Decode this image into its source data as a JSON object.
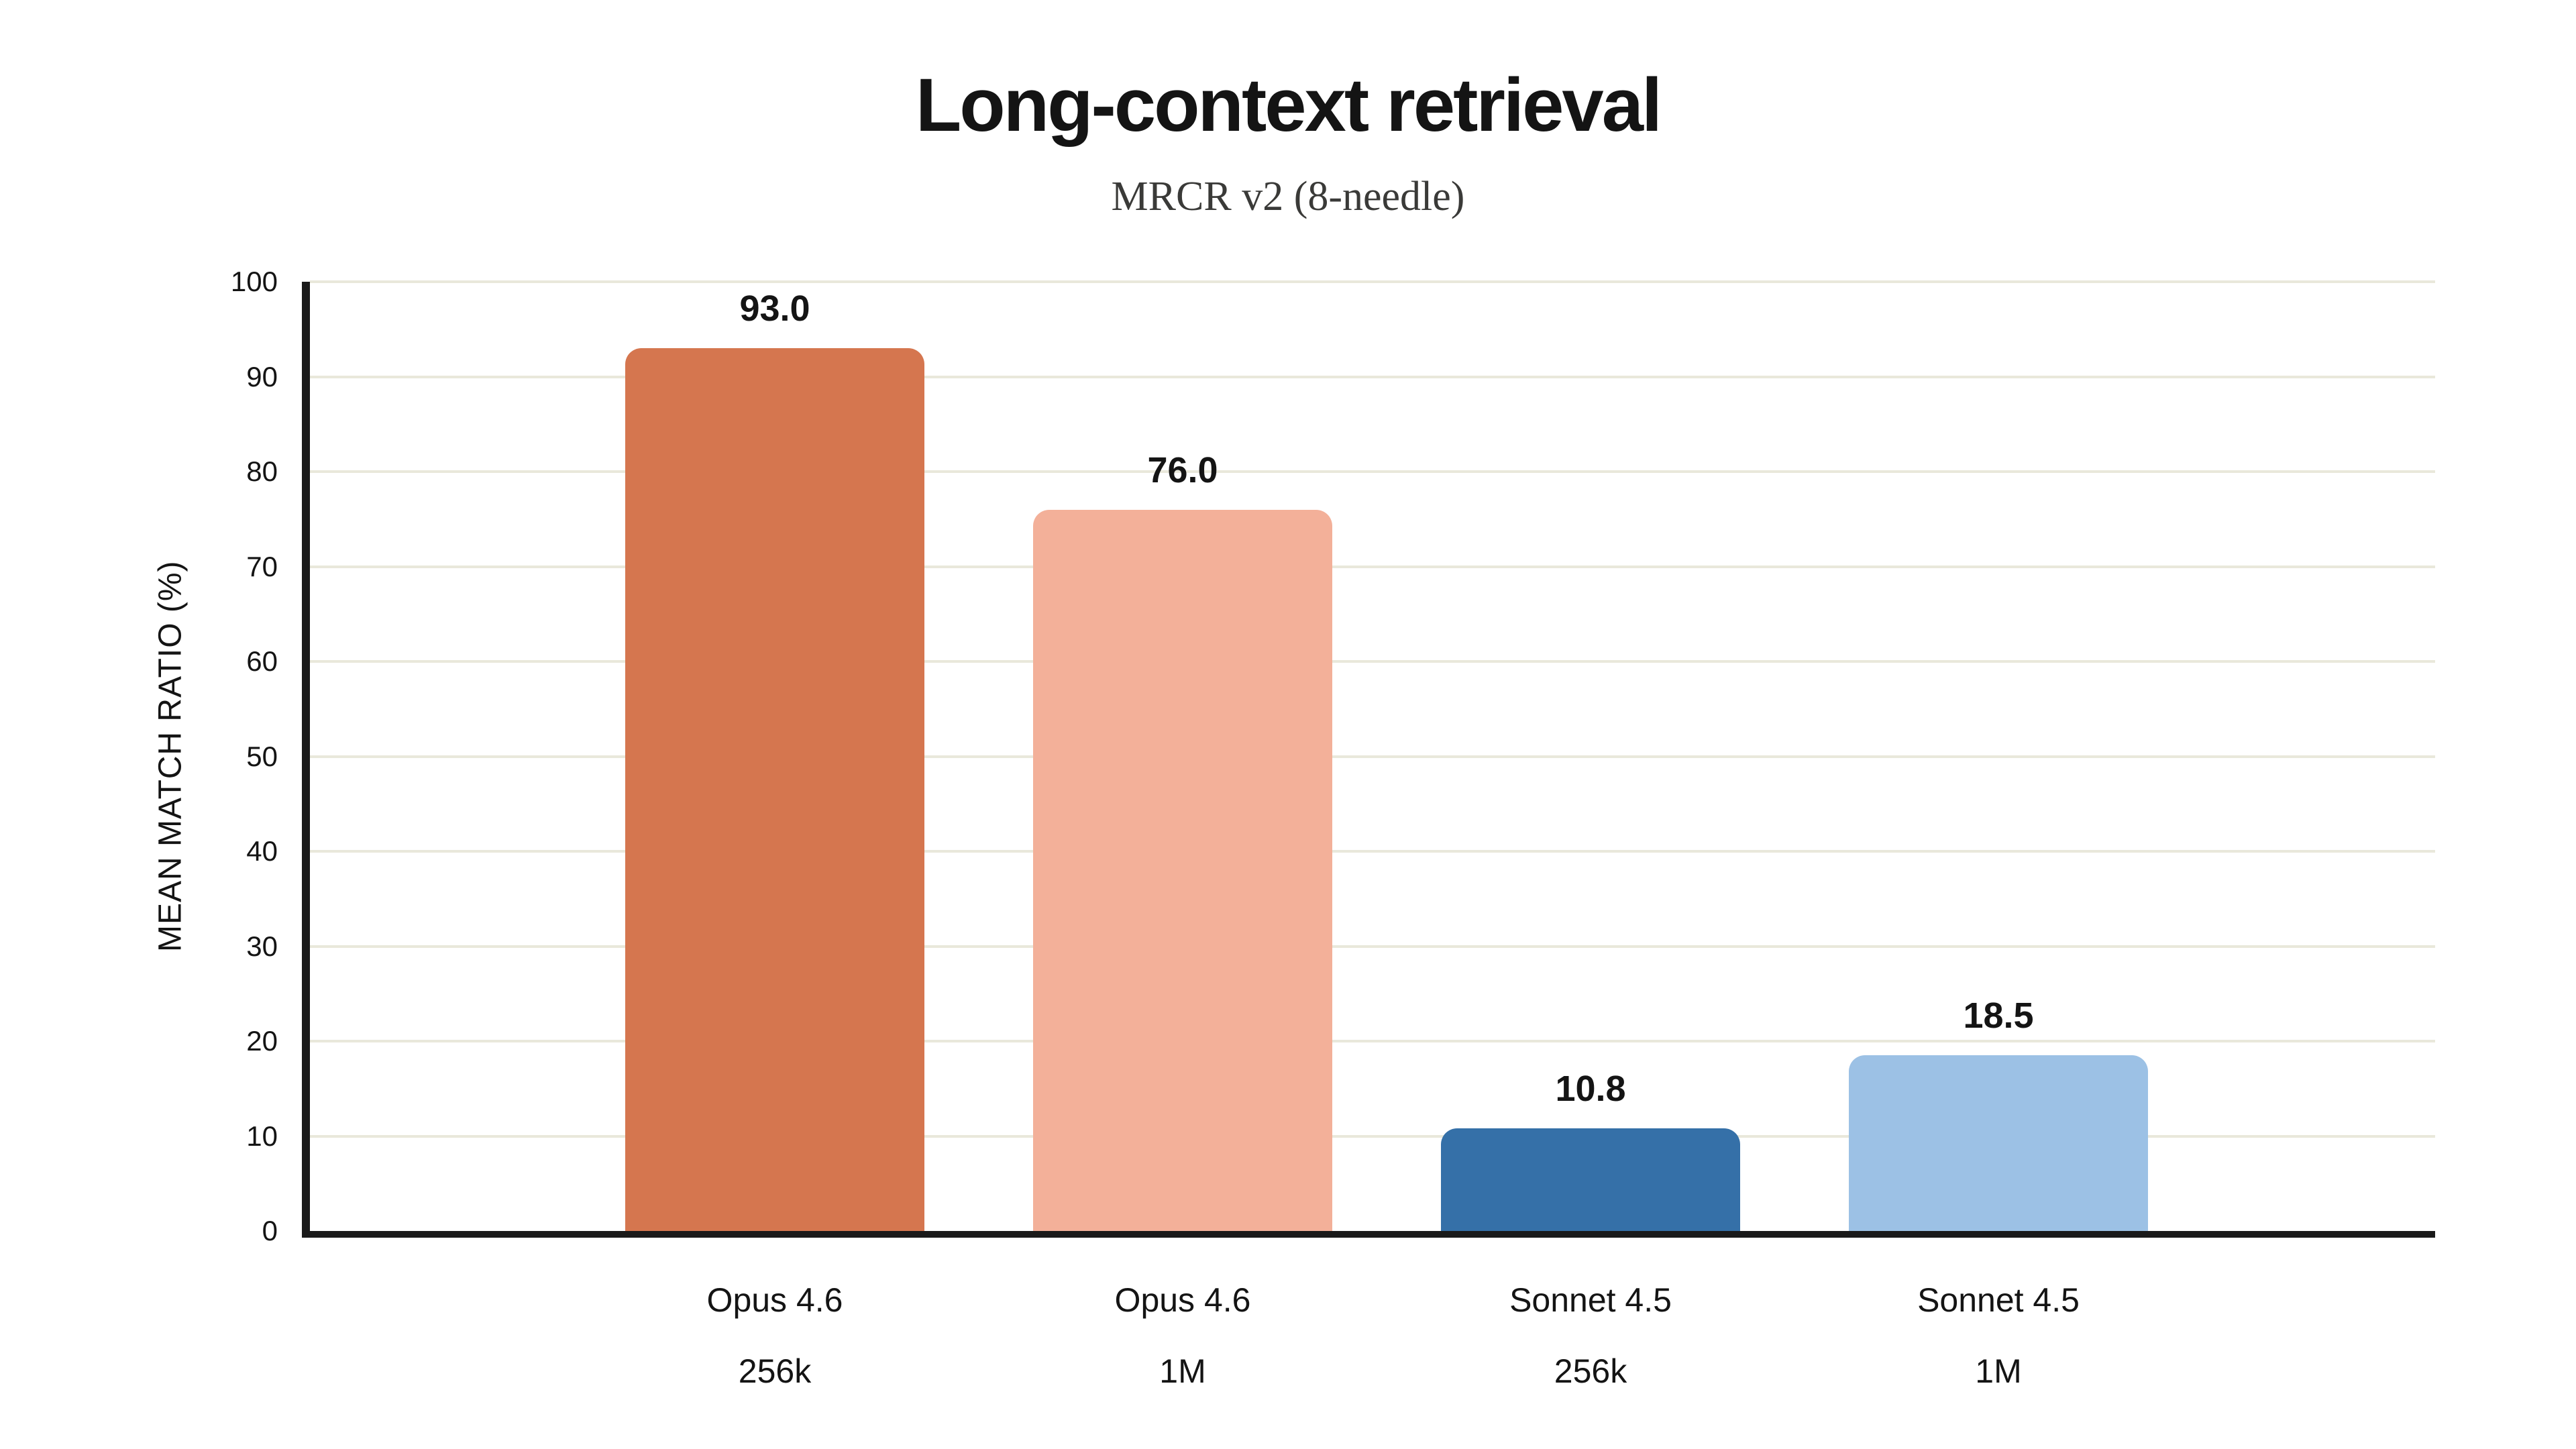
{
  "header": {
    "title": "Long-context retrieval",
    "subtitle": "MRCR v2 (8-needle)"
  },
  "chart_data": {
    "type": "bar",
    "title": "Long-context retrieval",
    "subtitle": "MRCR v2 (8-needle)",
    "xlabel": "",
    "ylabel": "MEAN MATCH RATIO (%)",
    "ylim": [
      0,
      100
    ],
    "ytick_interval": 10,
    "yticks": [
      0,
      10,
      20,
      30,
      40,
      50,
      60,
      70,
      80,
      90,
      100
    ],
    "grid": "horizontal-only",
    "legend": "none",
    "categories": [
      {
        "label": "Opus 4.6",
        "sublabel": "256k"
      },
      {
        "label": "Opus 4.6",
        "sublabel": "1M"
      },
      {
        "label": "Sonnet 4.5",
        "sublabel": "256k"
      },
      {
        "label": "Sonnet 4.5",
        "sublabel": "1M"
      }
    ],
    "values": [
      93.0,
      76.0,
      10.8,
      18.5
    ],
    "value_labels": [
      "93.0",
      "76.0",
      "10.8",
      "18.5"
    ],
    "bar_colors": [
      "#d5764f",
      "#f3b099",
      "#3570a8",
      "#9cc1e5"
    ],
    "colors": {
      "background": "#ffffff",
      "axis": "#1a1a1a",
      "gridline": "#e9e8db",
      "text": "#141414",
      "subtitle_text": "#3a3a38"
    }
  }
}
